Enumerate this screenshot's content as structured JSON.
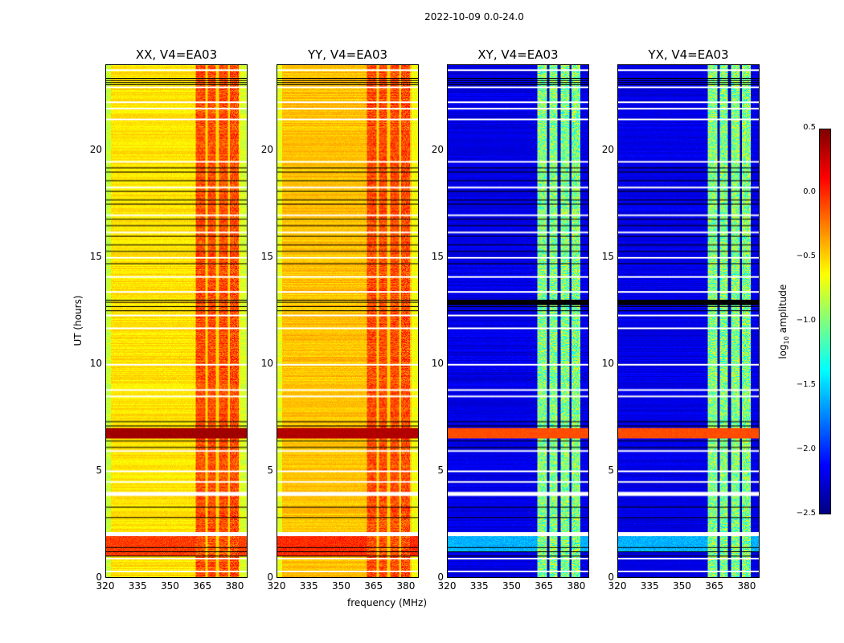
{
  "chart_data": {
    "type": "heatmap",
    "title": "2022-10-09 0.0-24.0",
    "xlabel": "frequency (MHz)",
    "ylabel": "UT (hours)",
    "xlim": [
      320,
      386
    ],
    "ylim": [
      0,
      24
    ],
    "xticks": [
      320,
      335,
      350,
      365,
      380
    ],
    "yticks": [
      0,
      5,
      10,
      15,
      20
    ],
    "colorbar": {
      "label": "log10 amplitude",
      "label_main": "log",
      "label_sub": "10",
      "label_rest": " amplitude",
      "range": [
        -2.5,
        0.5
      ],
      "ticks": [
        "0.5",
        "0.0",
        "−0.5",
        "−1.0",
        "−1.5",
        "−2.0",
        "−2.5"
      ],
      "tick_values": [
        0.5,
        0,
        -0.5,
        -1,
        -1.5,
        -2,
        -2.5
      ],
      "colormap": "jet"
    },
    "rfi_band_mhz": [
      362,
      382
    ],
    "band_gaps_mhz": [
      367,
      372,
      377.5
    ],
    "flagged_hours_white": [
      0.3,
      0.9,
      2.1,
      4.0,
      4.5,
      5.0,
      5.95,
      8.5,
      8.8,
      10.0,
      11.7,
      12.3,
      13.4,
      14.1,
      15.0,
      16.2,
      17.0,
      18.3,
      19.5,
      21.5,
      22.0,
      22.3,
      23.0,
      23.8
    ],
    "flagged_hours_black": [
      1.0,
      1.2,
      1.4,
      2.8,
      3.3,
      6.1,
      6.4,
      7.1,
      7.3,
      12.5,
      12.7,
      12.9,
      13.0,
      14.7,
      15.3,
      15.6,
      16.0,
      16.5,
      16.8,
      17.5,
      17.7,
      18.1,
      18.6,
      19.0,
      19.2,
      23.1,
      23.2,
      23.3,
      23.4
    ],
    "panels": [
      {
        "title": "XX, V4=EA03",
        "base": -0.55,
        "band": -0.1,
        "high_rows": [
          [
            1.0,
            2.0,
            -0.05
          ],
          [
            6.5,
            7.0,
            0.4
          ]
        ]
      },
      {
        "title": "YY, V4=EA03",
        "base": -0.45,
        "band": -0.1,
        "high_rows": [
          [
            1.0,
            2.0,
            0.0
          ],
          [
            6.5,
            7.0,
            0.35
          ]
        ]
      },
      {
        "title": "XY, V4=EA03",
        "base": -2.2,
        "band": -1.0,
        "high_rows": [
          [
            1.2,
            2.0,
            -1.6
          ],
          [
            6.5,
            7.0,
            -0.1
          ]
        ]
      },
      {
        "title": "YX, V4=EA03",
        "base": -2.2,
        "band": -1.0,
        "high_rows": [
          [
            1.2,
            2.0,
            -1.6
          ],
          [
            6.5,
            7.0,
            -0.1
          ]
        ]
      }
    ]
  }
}
